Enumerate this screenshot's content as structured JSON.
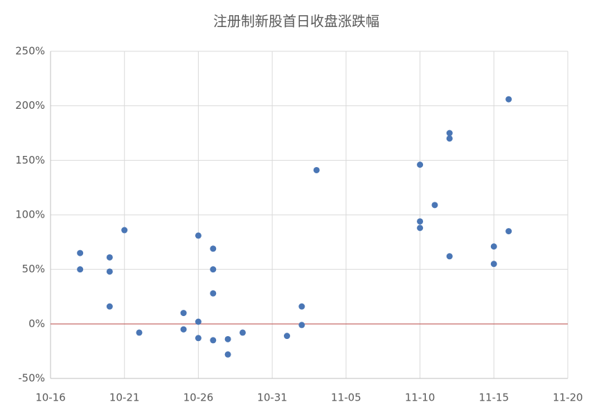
{
  "chart_data": {
    "type": "scatter",
    "title": "注册制新股首日收盘涨跌幅",
    "x": [
      "10-18",
      "10-18",
      "10-20",
      "10-20",
      "10-20",
      "10-21",
      "10-22",
      "10-25",
      "10-25",
      "10-26",
      "10-26",
      "10-26",
      "10-27",
      "10-27",
      "10-27",
      "10-27",
      "10-28",
      "10-28",
      "10-29",
      "11-01",
      "11-02",
      "11-02",
      "11-03",
      "11-10",
      "11-10",
      "11-10",
      "11-11",
      "11-12",
      "11-12",
      "11-12",
      "11-15",
      "11-15",
      "11-16",
      "11-16"
    ],
    "values": [
      65,
      50,
      61,
      48,
      16,
      86,
      -8,
      10,
      -5,
      81,
      2,
      -13,
      69,
      50,
      28,
      -15,
      -14,
      -28,
      -8,
      -11,
      16,
      -1,
      141,
      146,
      94,
      88,
      109,
      175,
      170,
      62,
      71,
      55,
      206,
      85
    ],
    "color": "#4a76b5",
    "xlim": [
      "10-16",
      "11-20"
    ],
    "xticks": [
      "10-16",
      "10-21",
      "10-26",
      "10-31",
      "11-05",
      "11-10",
      "11-15",
      "11-20"
    ],
    "ylim": [
      -50,
      250
    ],
    "yticks": [
      {
        "value": -50,
        "label": "-50%"
      },
      {
        "value": 0,
        "label": "0%"
      },
      {
        "value": 50,
        "label": "50%"
      },
      {
        "value": 100,
        "label": "100%"
      },
      {
        "value": 150,
        "label": "150%"
      },
      {
        "value": 200,
        "label": "200%"
      },
      {
        "value": 250,
        "label": "250%"
      }
    ],
    "grid": true,
    "baseline_color": "#c0504d"
  }
}
